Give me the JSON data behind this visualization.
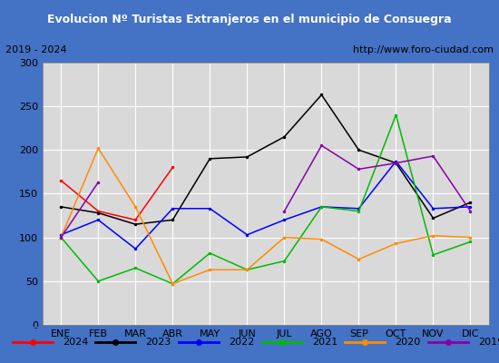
{
  "title": "Evolucion Nº Turistas Extranjeros en el municipio de Consuegra",
  "subtitle_left": "2019 - 2024",
  "subtitle_right": "http://www.foro-ciudad.com",
  "title_bg_color": "#4472c4",
  "title_text_color": "#ffffff",
  "subtitle_bg_color": "#ffffff",
  "subtitle_text_color": "#000000",
  "plot_bg_color": "#d9d9d9",
  "grid_color": "#ffffff",
  "months": [
    "ENE",
    "FEB",
    "MAR",
    "ABR",
    "MAY",
    "JUN",
    "JUL",
    "AGO",
    "SEP",
    "OCT",
    "NOV",
    "DIC"
  ],
  "ylim": [
    0,
    300
  ],
  "yticks": [
    0,
    50,
    100,
    150,
    200,
    250,
    300
  ],
  "series": {
    "2024": {
      "color": "#ff0000",
      "values": [
        165,
        130,
        120,
        180,
        null,
        null,
        null,
        null,
        null,
        null,
        null,
        null
      ]
    },
    "2023": {
      "color": "#000000",
      "values": [
        135,
        128,
        115,
        120,
        190,
        192,
        215,
        263,
        200,
        185,
        122,
        140
      ]
    },
    "2022": {
      "color": "#0000ff",
      "values": [
        103,
        120,
        87,
        133,
        133,
        103,
        120,
        135,
        133,
        187,
        133,
        135
      ]
    },
    "2021": {
      "color": "#00bb00",
      "values": [
        100,
        50,
        65,
        47,
        82,
        63,
        73,
        135,
        130,
        240,
        80,
        95
      ]
    },
    "2020": {
      "color": "#ff8c00",
      "values": [
        100,
        202,
        135,
        47,
        63,
        63,
        100,
        98,
        75,
        93,
        102,
        100
      ]
    },
    "2019": {
      "color": "#8800aa",
      "values": [
        100,
        163,
        null,
        null,
        null,
        null,
        130,
        205,
        178,
        185,
        193,
        130
      ]
    }
  },
  "legend_order": [
    "2024",
    "2023",
    "2022",
    "2021",
    "2020",
    "2019"
  ],
  "border_color": "#4472c4",
  "tick_fontsize": 8,
  "axis_label_fontsize": 8,
  "title_fontsize": 9,
  "subtitle_fontsize": 8,
  "legend_fontsize": 8
}
